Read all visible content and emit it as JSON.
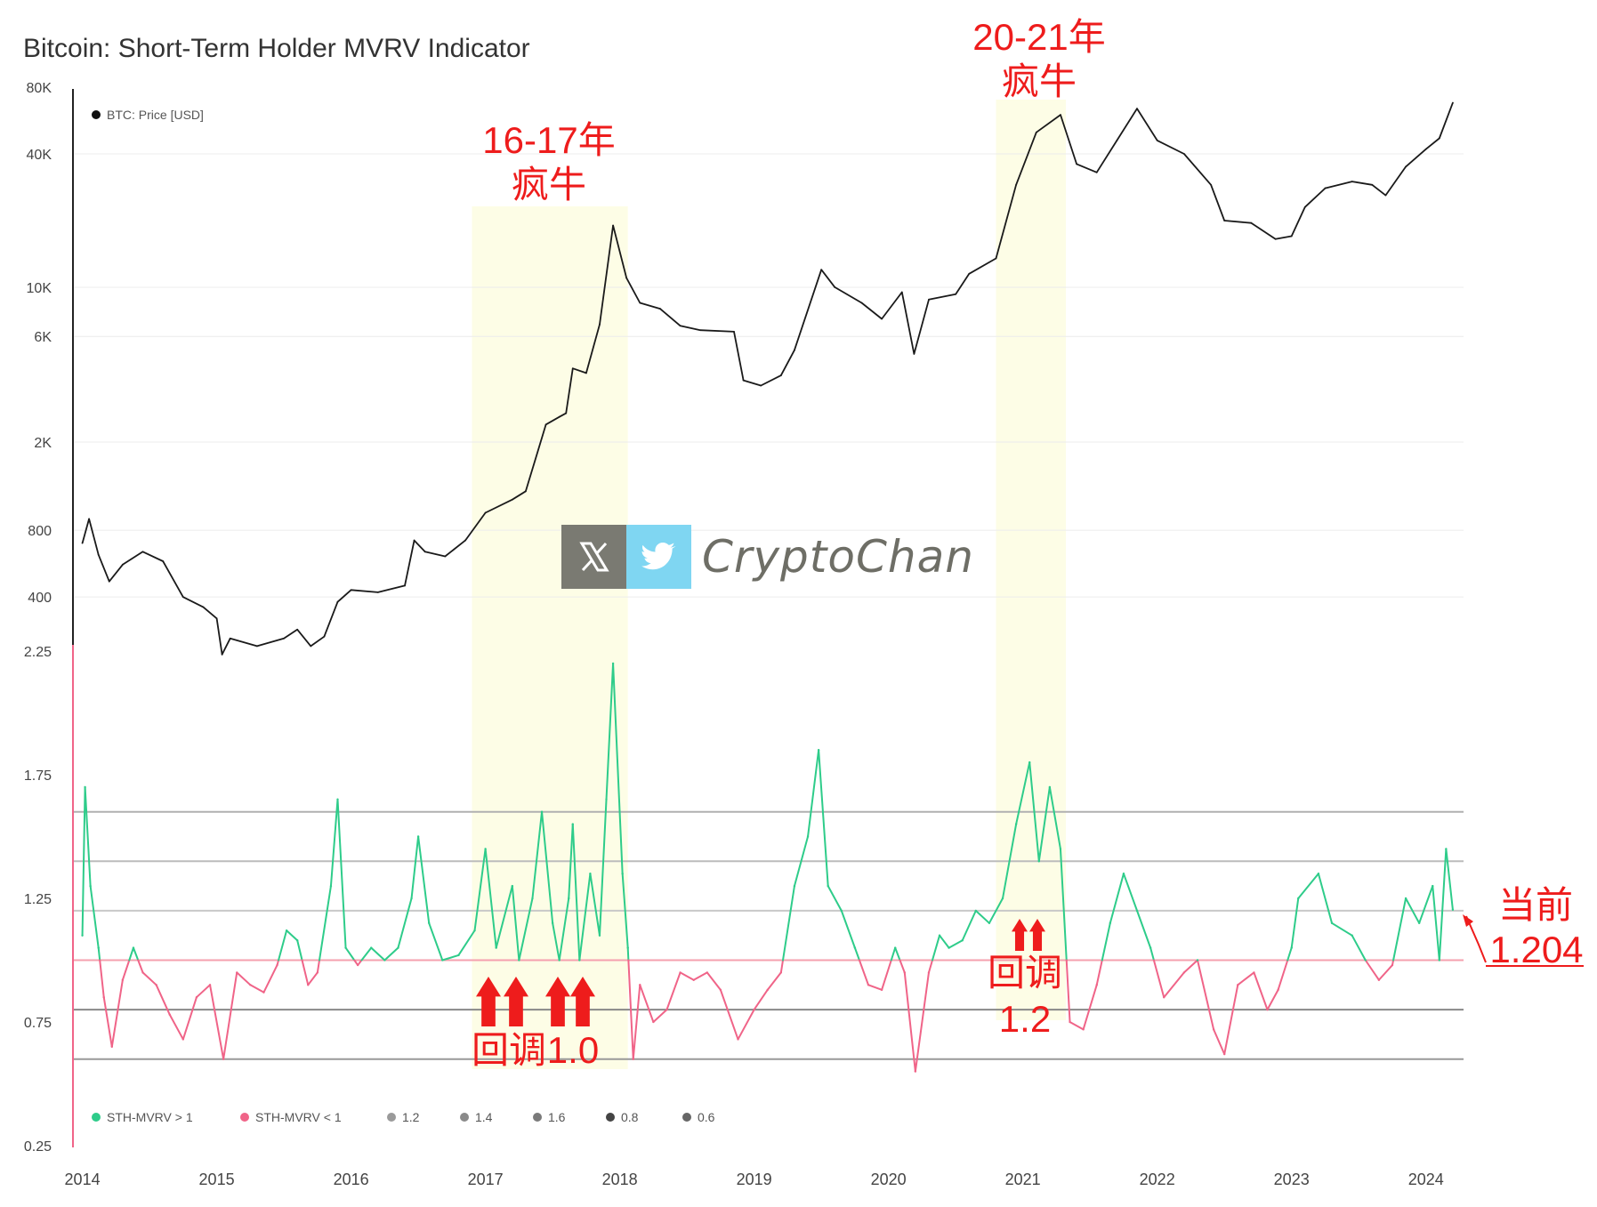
{
  "title": "Bitcoin: Short-Term Holder MVRV Indicator",
  "watermark": {
    "text": "CryptoChan",
    "x_icon": "x-logo-icon",
    "bird_icon": "twitter-bird-icon"
  },
  "colors": {
    "price_line": "#1a1a1a",
    "mvrv_above": "#2ecc8a",
    "mvrv_below": "#f06488",
    "baseline": "#f5a0ae",
    "highlight": "#fdfde6",
    "annotation": "#ee1c1c"
  },
  "annotations": {
    "bull1_a": "16-17年",
    "bull1_b": "疯牛",
    "bull2_a": "20-21年",
    "bull2_b": "疯牛",
    "pullback1_a": "回调",
    "pullback1_b": "1.0",
    "pullback2_a": "回调",
    "pullback2_b": "1.2",
    "current_a": "当前",
    "current_b": "1.204"
  },
  "chart_data": [
    {
      "type": "line",
      "title": "Bitcoin: Short-Term Holder MVRV Indicator",
      "yscale": "log",
      "ylim": [
        250,
        80000
      ],
      "y_ticks": [
        {
          "value": 80000,
          "label": "80K"
        },
        {
          "value": 40000,
          "label": "40K"
        },
        {
          "value": 10000,
          "label": "10K"
        },
        {
          "value": 6000,
          "label": "6K"
        },
        {
          "value": 2000,
          "label": "2K"
        },
        {
          "value": 800,
          "label": "800"
        },
        {
          "value": 400,
          "label": "400"
        }
      ],
      "legend": [
        "BTC: Price [USD]"
      ],
      "legend_position": "top-left",
      "series": [
        {
          "name": "BTC: Price [USD]",
          "points": [
            [
              2014.0,
              700
            ],
            [
              2014.05,
              900
            ],
            [
              2014.12,
              620
            ],
            [
              2014.2,
              470
            ],
            [
              2014.3,
              560
            ],
            [
              2014.45,
              640
            ],
            [
              2014.6,
              580
            ],
            [
              2014.75,
              400
            ],
            [
              2014.9,
              360
            ],
            [
              2015.0,
              320
            ],
            [
              2015.04,
              220
            ],
            [
              2015.1,
              260
            ],
            [
              2015.3,
              240
            ],
            [
              2015.5,
              260
            ],
            [
              2015.6,
              285
            ],
            [
              2015.7,
              240
            ],
            [
              2015.8,
              265
            ],
            [
              2015.9,
              380
            ],
            [
              2016.0,
              430
            ],
            [
              2016.2,
              420
            ],
            [
              2016.4,
              450
            ],
            [
              2016.47,
              720
            ],
            [
              2016.55,
              640
            ],
            [
              2016.7,
              610
            ],
            [
              2016.85,
              720
            ],
            [
              2017.0,
              960
            ],
            [
              2017.2,
              1100
            ],
            [
              2017.3,
              1200
            ],
            [
              2017.45,
              2400
            ],
            [
              2017.55,
              2600
            ],
            [
              2017.6,
              2700
            ],
            [
              2017.65,
              4300
            ],
            [
              2017.75,
              4100
            ],
            [
              2017.85,
              6800
            ],
            [
              2017.95,
              19000
            ],
            [
              2018.05,
              11000
            ],
            [
              2018.15,
              8500
            ],
            [
              2018.3,
              8000
            ],
            [
              2018.45,
              6700
            ],
            [
              2018.6,
              6400
            ],
            [
              2018.85,
              6300
            ],
            [
              2018.92,
              3800
            ],
            [
              2019.05,
              3600
            ],
            [
              2019.2,
              4000
            ],
            [
              2019.3,
              5200
            ],
            [
              2019.5,
              12000
            ],
            [
              2019.6,
              10000
            ],
            [
              2019.8,
              8500
            ],
            [
              2019.95,
              7200
            ],
            [
              2020.1,
              9500
            ],
            [
              2020.19,
              5000
            ],
            [
              2020.3,
              8800
            ],
            [
              2020.5,
              9300
            ],
            [
              2020.6,
              11500
            ],
            [
              2020.8,
              13500
            ],
            [
              2020.95,
              29000
            ],
            [
              2021.1,
              50000
            ],
            [
              2021.28,
              60000
            ],
            [
              2021.4,
              36000
            ],
            [
              2021.55,
              33000
            ],
            [
              2021.7,
              46000
            ],
            [
              2021.85,
              64000
            ],
            [
              2022.0,
              46000
            ],
            [
              2022.2,
              40000
            ],
            [
              2022.4,
              29000
            ],
            [
              2022.5,
              20000
            ],
            [
              2022.7,
              19500
            ],
            [
              2022.88,
              16500
            ],
            [
              2023.0,
              17000
            ],
            [
              2023.1,
              23000
            ],
            [
              2023.25,
              28000
            ],
            [
              2023.45,
              30000
            ],
            [
              2023.6,
              29000
            ],
            [
              2023.7,
              26000
            ],
            [
              2023.85,
              35000
            ],
            [
              2024.0,
              42000
            ],
            [
              2024.1,
              47000
            ],
            [
              2024.2,
              68000
            ]
          ]
        }
      ]
    },
    {
      "type": "line",
      "yscale": "linear",
      "ylim": [
        0.25,
        2.25
      ],
      "y_ticks": [
        {
          "value": 2.25,
          "label": "2.25"
        },
        {
          "value": 1.75,
          "label": "1.75"
        },
        {
          "value": 1.25,
          "label": "1.25"
        },
        {
          "value": 0.75,
          "label": "0.75"
        },
        {
          "value": 0.25,
          "label": "0.25"
        }
      ],
      "x_ticks": [
        "2014",
        "2015",
        "2016",
        "2017",
        "2018",
        "2019",
        "2020",
        "2021",
        "2022",
        "2023",
        "2024"
      ],
      "reference_lines": [
        {
          "value": 1.2,
          "label": "1.2",
          "color": "#c8c8c8"
        },
        {
          "value": 1.4,
          "label": "1.4",
          "color": "#bcbcbc"
        },
        {
          "value": 1.6,
          "label": "1.6",
          "color": "#b0b0b0"
        },
        {
          "value": 0.8,
          "label": "0.8",
          "color": "#888888"
        },
        {
          "value": 0.6,
          "label": "0.6",
          "color": "#999999"
        }
      ],
      "threshold": 1.0,
      "legend": [
        "STH-MVRV > 1",
        "STH-MVRV < 1",
        "1.2",
        "1.4",
        "1.6",
        "0.8",
        "0.6"
      ],
      "legend_colors": [
        "#2ecc8a",
        "#f06488",
        "#9a9a9a",
        "#8a8a8a",
        "#7a7a7a",
        "#444444",
        "#666666"
      ],
      "legend_position": "bottom-left",
      "series": [
        {
          "name": "STH-MVRV",
          "points": [
            [
              2014.0,
              1.1
            ],
            [
              2014.02,
              1.7
            ],
            [
              2014.06,
              1.3
            ],
            [
              2014.12,
              1.05
            ],
            [
              2014.16,
              0.85
            ],
            [
              2014.22,
              0.65
            ],
            [
              2014.3,
              0.92
            ],
            [
              2014.38,
              1.05
            ],
            [
              2014.45,
              0.95
            ],
            [
              2014.55,
              0.9
            ],
            [
              2014.65,
              0.78
            ],
            [
              2014.75,
              0.68
            ],
            [
              2014.85,
              0.85
            ],
            [
              2014.95,
              0.9
            ],
            [
              2015.05,
              0.6
            ],
            [
              2015.15,
              0.95
            ],
            [
              2015.25,
              0.9
            ],
            [
              2015.35,
              0.87
            ],
            [
              2015.45,
              0.98
            ],
            [
              2015.52,
              1.12
            ],
            [
              2015.6,
              1.08
            ],
            [
              2015.68,
              0.9
            ],
            [
              2015.75,
              0.95
            ],
            [
              2015.85,
              1.3
            ],
            [
              2015.9,
              1.65
            ],
            [
              2015.96,
              1.05
            ],
            [
              2016.05,
              0.98
            ],
            [
              2016.15,
              1.05
            ],
            [
              2016.25,
              1.0
            ],
            [
              2016.35,
              1.05
            ],
            [
              2016.45,
              1.25
            ],
            [
              2016.5,
              1.5
            ],
            [
              2016.58,
              1.15
            ],
            [
              2016.68,
              1.0
            ],
            [
              2016.8,
              1.02
            ],
            [
              2016.92,
              1.12
            ],
            [
              2017.0,
              1.45
            ],
            [
              2017.08,
              1.05
            ],
            [
              2017.2,
              1.3
            ],
            [
              2017.25,
              1.0
            ],
            [
              2017.35,
              1.25
            ],
            [
              2017.42,
              1.6
            ],
            [
              2017.5,
              1.15
            ],
            [
              2017.55,
              1.0
            ],
            [
              2017.62,
              1.25
            ],
            [
              2017.65,
              1.55
            ],
            [
              2017.7,
              1.0
            ],
            [
              2017.78,
              1.35
            ],
            [
              2017.85,
              1.1
            ],
            [
              2017.9,
              1.65
            ],
            [
              2017.95,
              2.2
            ],
            [
              2018.02,
              1.35
            ],
            [
              2018.06,
              1.05
            ],
            [
              2018.1,
              0.6
            ],
            [
              2018.15,
              0.9
            ],
            [
              2018.25,
              0.75
            ],
            [
              2018.35,
              0.8
            ],
            [
              2018.45,
              0.95
            ],
            [
              2018.55,
              0.92
            ],
            [
              2018.65,
              0.95
            ],
            [
              2018.75,
              0.88
            ],
            [
              2018.88,
              0.68
            ],
            [
              2019.0,
              0.8
            ],
            [
              2019.1,
              0.88
            ],
            [
              2019.2,
              0.95
            ],
            [
              2019.3,
              1.3
            ],
            [
              2019.4,
              1.5
            ],
            [
              2019.48,
              1.85
            ],
            [
              2019.55,
              1.3
            ],
            [
              2019.65,
              1.2
            ],
            [
              2019.75,
              1.05
            ],
            [
              2019.85,
              0.9
            ],
            [
              2019.95,
              0.88
            ],
            [
              2020.05,
              1.05
            ],
            [
              2020.12,
              0.95
            ],
            [
              2020.2,
              0.55
            ],
            [
              2020.3,
              0.95
            ],
            [
              2020.38,
              1.1
            ],
            [
              2020.45,
              1.05
            ],
            [
              2020.55,
              1.08
            ],
            [
              2020.65,
              1.2
            ],
            [
              2020.75,
              1.15
            ],
            [
              2020.85,
              1.25
            ],
            [
              2020.95,
              1.55
            ],
            [
              2021.05,
              1.8
            ],
            [
              2021.12,
              1.4
            ],
            [
              2021.2,
              1.7
            ],
            [
              2021.28,
              1.45
            ],
            [
              2021.35,
              0.75
            ],
            [
              2021.45,
              0.72
            ],
            [
              2021.55,
              0.9
            ],
            [
              2021.65,
              1.15
            ],
            [
              2021.75,
              1.35
            ],
            [
              2021.85,
              1.2
            ],
            [
              2021.95,
              1.05
            ],
            [
              2022.05,
              0.85
            ],
            [
              2022.2,
              0.95
            ],
            [
              2022.3,
              1.0
            ],
            [
              2022.42,
              0.72
            ],
            [
              2022.5,
              0.62
            ],
            [
              2022.6,
              0.9
            ],
            [
              2022.72,
              0.95
            ],
            [
              2022.82,
              0.8
            ],
            [
              2022.9,
              0.88
            ],
            [
              2023.0,
              1.05
            ],
            [
              2023.05,
              1.25
            ],
            [
              2023.2,
              1.35
            ],
            [
              2023.3,
              1.15
            ],
            [
              2023.45,
              1.1
            ],
            [
              2023.55,
              1.0
            ],
            [
              2023.65,
              0.92
            ],
            [
              2023.75,
              0.98
            ],
            [
              2023.85,
              1.25
            ],
            [
              2023.95,
              1.15
            ],
            [
              2024.05,
              1.3
            ],
            [
              2024.1,
              1.0
            ],
            [
              2024.15,
              1.45
            ],
            [
              2024.2,
              1.204
            ]
          ]
        }
      ]
    }
  ]
}
